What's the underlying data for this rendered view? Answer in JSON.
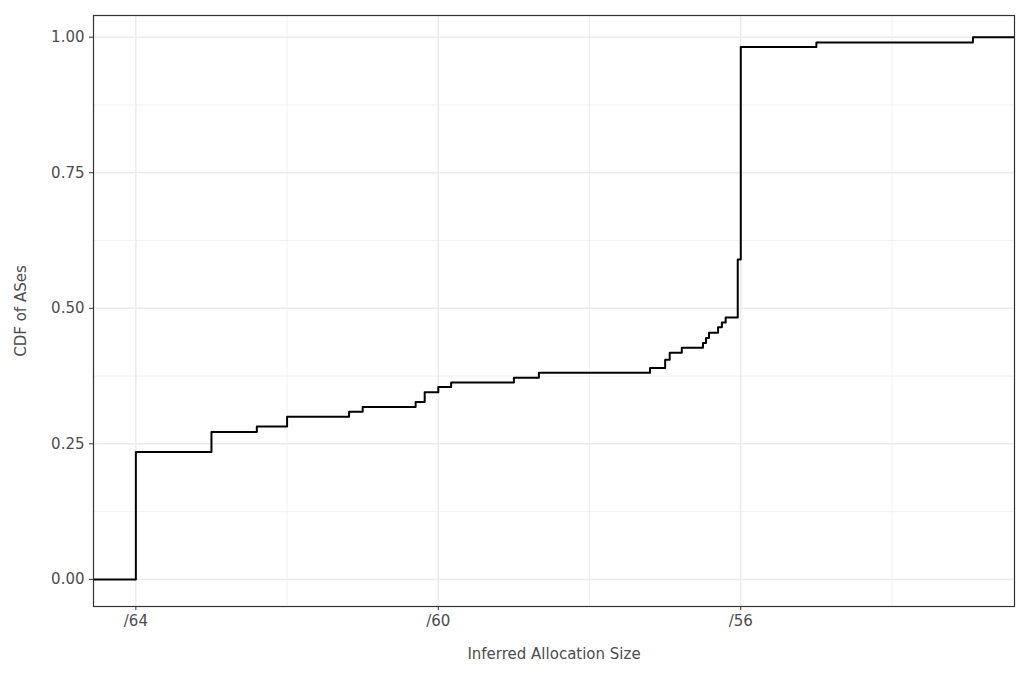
{
  "chart_data": {
    "type": "step",
    "x_label": "Inferred Allocation Size",
    "y_label": "CDF of ASes",
    "x": [
      64.56,
      64,
      63,
      62.4,
      62.0,
      61.18,
      61.0,
      60.3,
      60.18,
      60.0,
      59.83,
      59.0,
      58.67,
      57.2,
      57.0,
      56.94,
      56.78,
      56.5,
      56.46,
      56.42,
      56.3,
      56.25,
      56.2,
      56.04,
      56.0,
      55.0,
      52.93,
      52.38
    ],
    "values": [
      0,
      0.235,
      0.272,
      0.282,
      0.3,
      0.309,
      0.318,
      0.327,
      0.345,
      0.355,
      0.363,
      0.372,
      0.381,
      0.39,
      0.405,
      0.418,
      0.427,
      0.436,
      0.445,
      0.455,
      0.465,
      0.474,
      0.483,
      0.59,
      0.982,
      0.99,
      1.0,
      1.0
    ],
    "color": "#000000",
    "xlim": [
      64.56,
      52.38
    ],
    "ylim": [
      -0.05,
      1.04
    ],
    "xticks": [
      {
        "value": 64,
        "label": "/64"
      },
      {
        "value": 60,
        "label": "/60"
      },
      {
        "value": 56,
        "label": "/56"
      }
    ],
    "yticks": [
      {
        "value": 0,
        "label": "0.00"
      },
      {
        "value": 0.25,
        "label": "0.25"
      },
      {
        "value": 0.5,
        "label": "0.50"
      },
      {
        "value": 0.75,
        "label": "0.75"
      },
      {
        "value": 1,
        "label": "1.00"
      }
    ],
    "grid": true
  }
}
